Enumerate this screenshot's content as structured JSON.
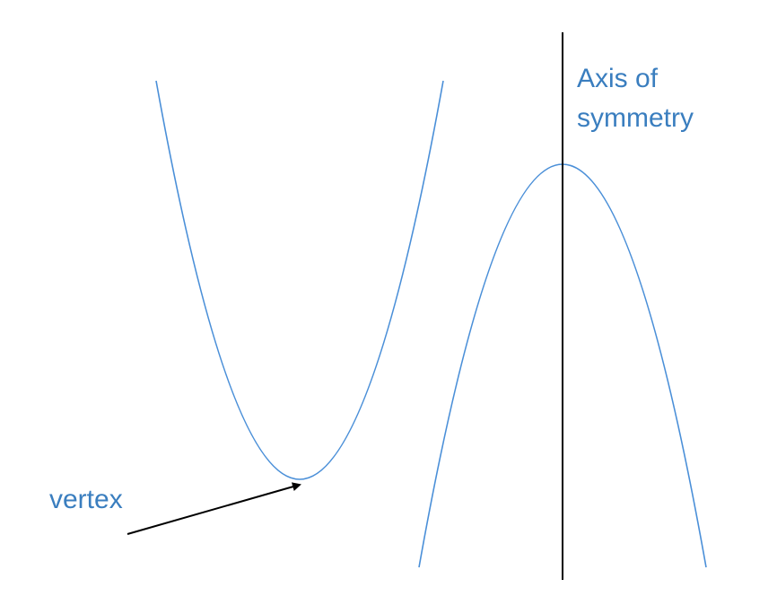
{
  "diagram": {
    "labels": {
      "axis_line1": "Axis of",
      "axis_line2": "symmetry",
      "vertex": "vertex"
    },
    "colors": {
      "curve": "#4a8fd8",
      "label": "#3a7ebf",
      "axis": "#000000",
      "arrow": "#000000",
      "background": "#ffffff"
    }
  }
}
